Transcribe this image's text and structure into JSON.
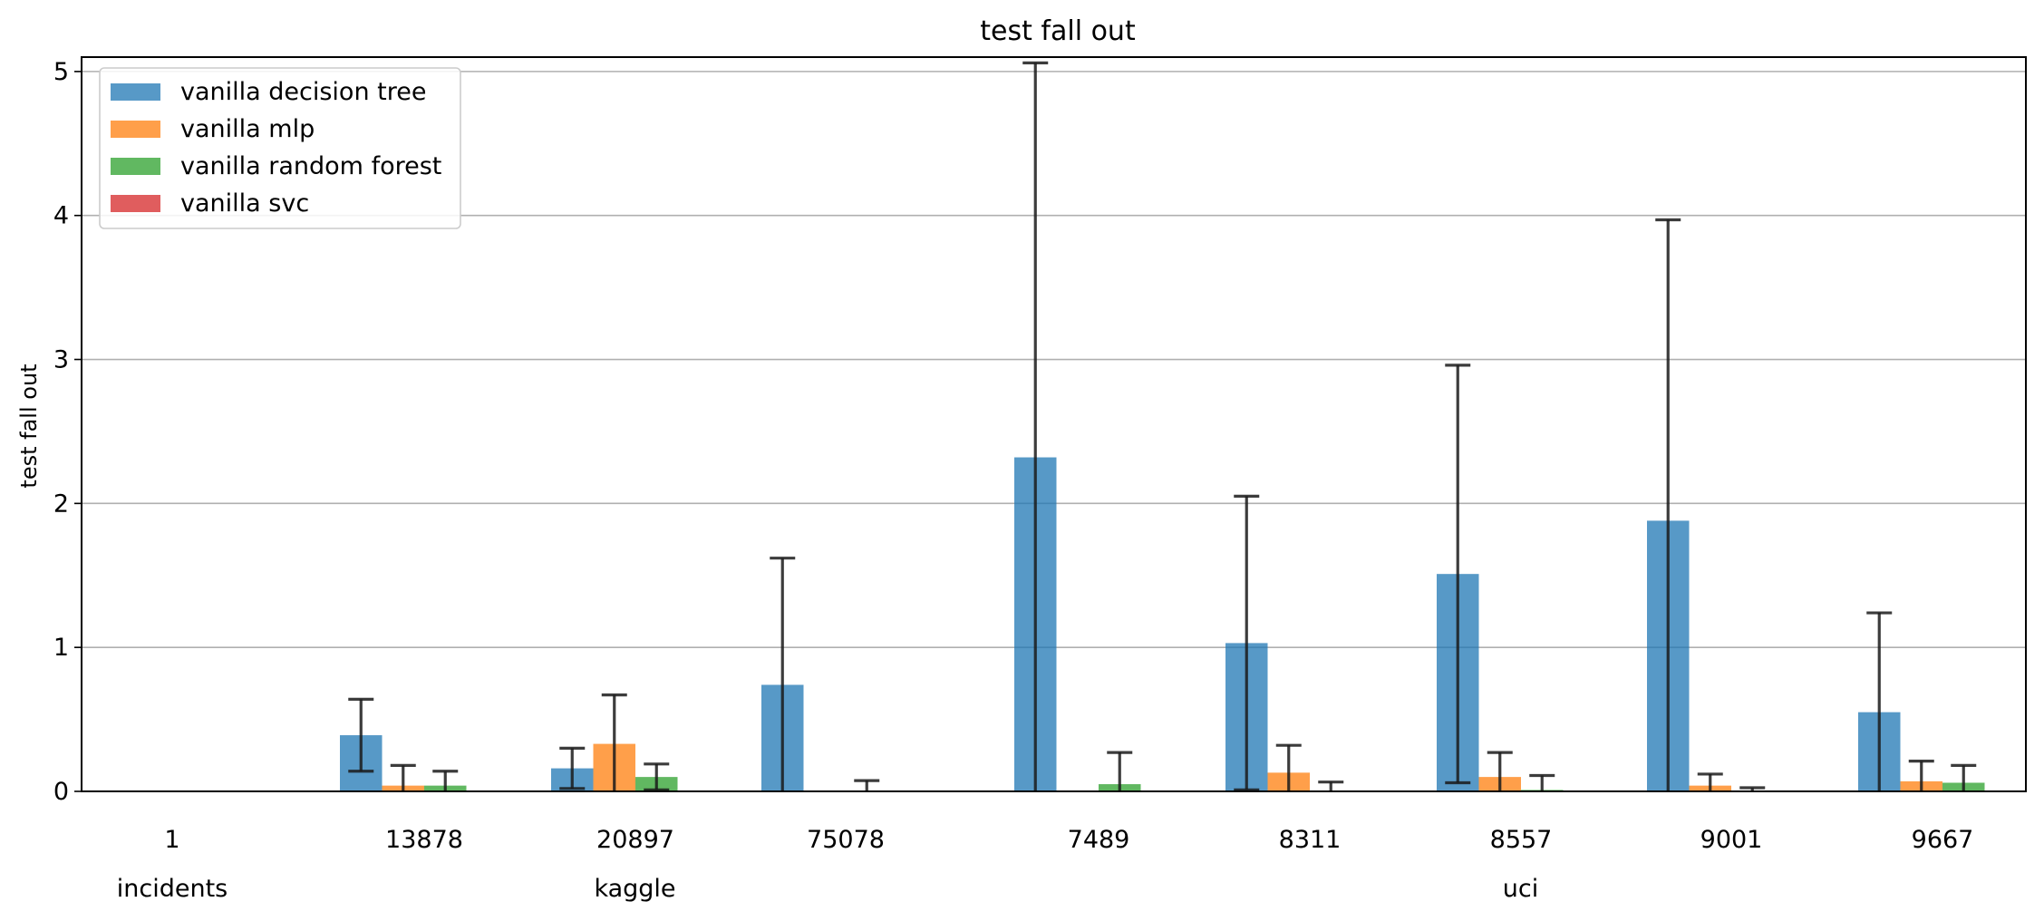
{
  "chart_data": {
    "type": "bar",
    "title": "test fall out",
    "xlabel": "",
    "ylabel": "test fall out",
    "ylim": [
      0,
      5.1
    ],
    "yticks": [
      0,
      1,
      2,
      3,
      4,
      5
    ],
    "grid": "horizontal",
    "legend_position": "top-left",
    "categories": [
      "1",
      "13878",
      "20897",
      "75078",
      "7489",
      "8311",
      "8557",
      "9001",
      "9667"
    ],
    "groups": [
      {
        "label": "incidents",
        "categories": [
          "1"
        ]
      },
      {
        "label": "kaggle",
        "categories": [
          "13878",
          "20897",
          "75078"
        ]
      },
      {
        "label": "uci",
        "categories": [
          "7489",
          "8311",
          "8557",
          "9001",
          "9667"
        ]
      }
    ],
    "series": [
      {
        "name": "vanilla decision tree",
        "color": "#1f77b4",
        "values": [
          0,
          0.39,
          0.16,
          0.74,
          2.32,
          1.03,
          1.51,
          1.88,
          0.55
        ],
        "errors": [
          0,
          0.25,
          0.14,
          0.88,
          2.74,
          1.02,
          1.45,
          2.09,
          0.69
        ]
      },
      {
        "name": "vanilla mlp",
        "color": "#ff7f0e",
        "values": [
          0,
          0.04,
          0.33,
          0,
          0,
          0.13,
          0.1,
          0.04,
          0.07
        ],
        "errors": [
          0,
          0.14,
          0.34,
          0,
          0,
          0.19,
          0.17,
          0.08,
          0.14
        ]
      },
      {
        "name": "vanilla random forest",
        "color": "#2ca02c",
        "values": [
          0,
          0.04,
          0.1,
          0.005,
          0.05,
          0.005,
          0.01,
          0.005,
          0.06
        ],
        "errors": [
          0,
          0.1,
          0.09,
          0.07,
          0.22,
          0.06,
          0.1,
          0.02,
          0.12
        ]
      },
      {
        "name": "vanilla svc",
        "color": "#d62728",
        "values": [
          0,
          0,
          0,
          0,
          0,
          0,
          0,
          0,
          0
        ],
        "errors": [
          0,
          0,
          0,
          0,
          0,
          0,
          0,
          0,
          0
        ]
      }
    ]
  }
}
